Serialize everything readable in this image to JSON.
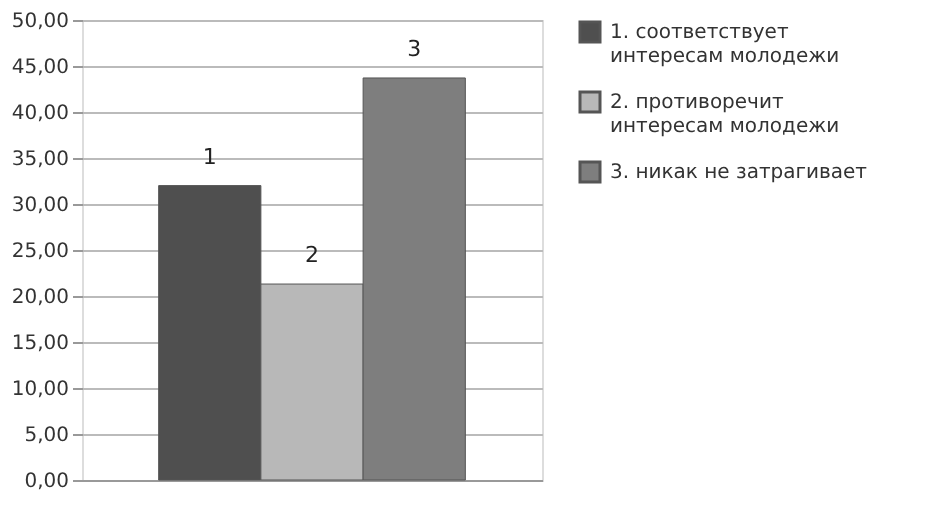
{
  "chart_data": {
    "type": "bar",
    "categories": [
      null
    ],
    "series": [
      {
        "name": "1. соответствует интересам молодежи",
        "color": "#4f4f4f",
        "values": [
          32.0
        ]
      },
      {
        "name": "2. противоречит интересам молодежи",
        "color": "#b8b8b8",
        "values": [
          21.3
        ]
      },
      {
        "name": "3. никак не затрагивает",
        "color": "#7e7e7e",
        "values": [
          43.7
        ]
      }
    ],
    "ylim": [
      0,
      50
    ],
    "yticks": [
      {
        "value": 0,
        "label": "0,00"
      },
      {
        "value": 5,
        "label": "5,00"
      },
      {
        "value": 10,
        "label": "10,00"
      },
      {
        "value": 15,
        "label": "15,00"
      },
      {
        "value": 20,
        "label": "20,00"
      },
      {
        "value": 25,
        "label": "25,00"
      },
      {
        "value": 30,
        "label": "30,00"
      },
      {
        "value": 35,
        "label": "35,00"
      },
      {
        "value": 40,
        "label": "40,00"
      },
      {
        "value": 45,
        "label": "45,00"
      },
      {
        "value": 50,
        "label": "50,00"
      }
    ],
    "annotations": [
      {
        "text": "1",
        "y": 32.0
      },
      {
        "text": "2",
        "y": 21.3
      },
      {
        "text": "3",
        "y": 43.7
      }
    ],
    "grid": "y",
    "legend": "right"
  }
}
